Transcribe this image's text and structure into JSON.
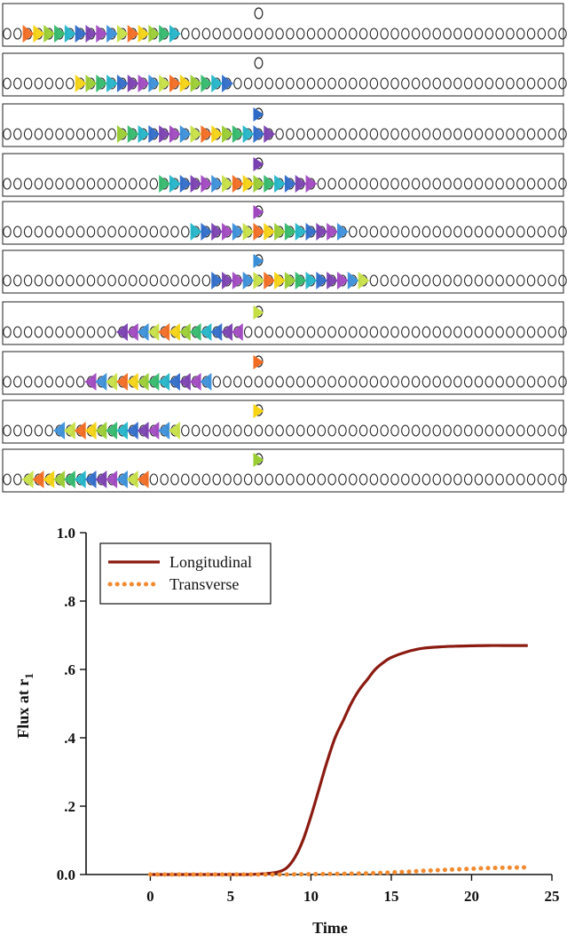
{
  "panels": {
    "count": 10,
    "sites_per_row": 54,
    "palette": [
      "#f26b22",
      "#f6d313",
      "#9acd32",
      "#33b86b",
      "#22b5c8",
      "#2e6bc9",
      "#7a3fb0",
      "#a048c0",
      "#3a8fd9",
      "#c6e044"
    ]
  },
  "chart_data": {
    "type": "line",
    "title": "",
    "xlabel": "Time",
    "ylabel": "Flux at r",
    "ylabel_subscript": "1",
    "xlim": [
      -4,
      25
    ],
    "ylim": [
      0,
      1
    ],
    "x_ticks": [
      0,
      5,
      10,
      15,
      20,
      25
    ],
    "x_tick_labels": [
      "0",
      "5",
      "10",
      "15",
      "20",
      "25"
    ],
    "y_ticks": [
      0,
      0.2,
      0.4,
      0.6,
      0.8,
      1.0
    ],
    "y_tick_labels": [
      "0.0",
      ".2",
      ".4",
      ".6",
      ".8",
      "1.0"
    ],
    "legend_position": "top-left",
    "series": [
      {
        "name": "Longitudinal",
        "style": "solid",
        "color": "#8b1a10",
        "x": [
          0,
          2,
          4,
          6,
          7,
          7.5,
          8,
          8.5,
          9,
          9.5,
          10,
          10.5,
          11,
          11.5,
          12,
          12.5,
          13,
          13.5,
          14,
          14.5,
          15,
          16,
          17,
          18,
          19,
          20,
          21,
          22,
          23.5
        ],
        "values": [
          0,
          0,
          0,
          0,
          0.002,
          0.004,
          0.008,
          0.02,
          0.05,
          0.1,
          0.17,
          0.25,
          0.33,
          0.4,
          0.45,
          0.5,
          0.54,
          0.57,
          0.6,
          0.62,
          0.635,
          0.652,
          0.662,
          0.666,
          0.668,
          0.669,
          0.67,
          0.67,
          0.67
        ]
      },
      {
        "name": "Transverse",
        "style": "dotted",
        "color": "#f28a30",
        "x": [
          0,
          2,
          4,
          6,
          8,
          10,
          12,
          14,
          15,
          16,
          17,
          18,
          19,
          20,
          21,
          22,
          23.5
        ],
        "values": [
          0,
          0,
          0,
          0,
          0,
          0.001,
          0.002,
          0.004,
          0.006,
          0.008,
          0.011,
          0.013,
          0.015,
          0.017,
          0.019,
          0.02,
          0.021
        ]
      }
    ]
  }
}
